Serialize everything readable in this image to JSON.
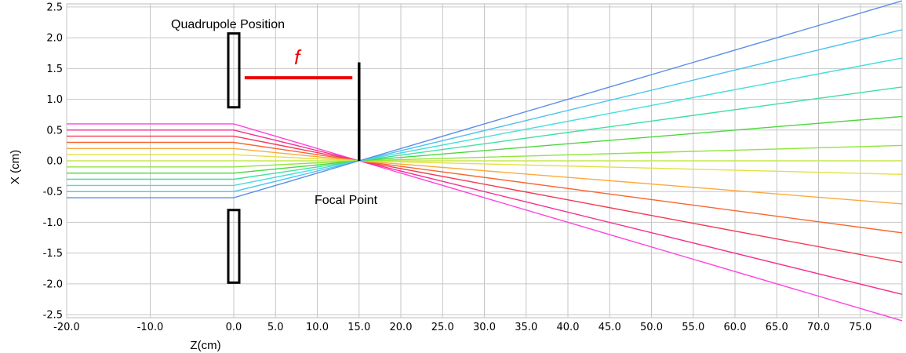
{
  "chart_data": {
    "type": "line",
    "xlabel": "Z(cm)",
    "ylabel": "X (cm)",
    "xlim": [
      -20,
      80
    ],
    "ylim": [
      -2.55,
      2.55
    ],
    "x_ticks": [
      "-20.0",
      "-10.0",
      "0.0",
      "5.0",
      "10.0",
      "15.0",
      "20.0",
      "25.0",
      "30.0",
      "35.0",
      "40.0",
      "45.0",
      "50.0",
      "55.0",
      "60.0",
      "65.0",
      "70.0",
      "75.0"
    ],
    "x_tick_values": [
      -20,
      -10,
      0,
      5,
      10,
      15,
      20,
      25,
      30,
      35,
      40,
      45,
      50,
      55,
      60,
      65,
      70,
      75
    ],
    "y_ticks": [
      "2.5",
      "2.0",
      "1.5",
      "1.0",
      "0.5",
      "0.0",
      "-0.5",
      "-1.0",
      "-1.5",
      "-2.0",
      "-2.5"
    ],
    "y_tick_values": [
      2.5,
      2.0,
      1.5,
      1.0,
      0.5,
      0.0,
      -0.5,
      -1.0,
      -1.5,
      -2.0,
      -2.5
    ],
    "grid": true,
    "quadrupole": {
      "z": 0.0,
      "upper": [
        0.87,
        2.07
      ],
      "lower": [
        -0.8,
        -1.98
      ]
    },
    "focal_point": {
      "z": 15.0,
      "x": 0.0
    },
    "focal_marker_top": 1.6,
    "focal_length_line": {
      "z_start": 1.3,
      "z_end": 14.2,
      "x": 1.35
    },
    "annotations": {
      "quadrupole_label": "Quadrupole Position",
      "focal_point_label": "Focal Point",
      "focal_length_symbol": "f"
    },
    "series": [
      {
        "x": [
          -20,
          0,
          15,
          80
        ],
        "values": [
          0.6,
          0.6,
          0.0,
          -2.6
        ],
        "color": "#ff44dd"
      },
      {
        "x": [
          -20,
          0,
          15,
          80
        ],
        "values": [
          0.5,
          0.5,
          0.0,
          -2.17
        ],
        "color": "#f5308f"
      },
      {
        "x": [
          -20,
          0,
          15,
          80
        ],
        "values": [
          0.4,
          0.4,
          0.0,
          -1.65
        ],
        "color": "#f23a55"
      },
      {
        "x": [
          -20,
          0,
          15,
          80
        ],
        "values": [
          0.3,
          0.3,
          0.0,
          -1.17
        ],
        "color": "#f86530"
      },
      {
        "x": [
          -20,
          0,
          15,
          80
        ],
        "values": [
          0.2,
          0.2,
          0.0,
          -0.7
        ],
        "color": "#fbaa3c"
      },
      {
        "x": [
          -20,
          0,
          15,
          80
        ],
        "values": [
          0.1,
          0.1,
          0.0,
          -0.22
        ],
        "color": "#e5e040"
      },
      {
        "x": [
          -20,
          0,
          15,
          80
        ],
        "values": [
          0.0,
          0.0,
          0.0,
          0.0
        ],
        "color": "#c6e84a"
      },
      {
        "x": [
          -20,
          0,
          15,
          80
        ],
        "values": [
          -0.1,
          -0.1,
          0.0,
          0.25
        ],
        "color": "#8ee53a"
      },
      {
        "x": [
          -20,
          0,
          15,
          80
        ],
        "values": [
          -0.2,
          -0.2,
          0.0,
          0.72
        ],
        "color": "#4cd63c"
      },
      {
        "x": [
          -20,
          0,
          15,
          80
        ],
        "values": [
          -0.3,
          -0.3,
          0.0,
          1.2
        ],
        "color": "#3fe0a0"
      },
      {
        "x": [
          -20,
          0,
          15,
          80
        ],
        "values": [
          -0.4,
          -0.4,
          0.0,
          1.67
        ],
        "color": "#44dddd"
      },
      {
        "x": [
          -20,
          0,
          15,
          80
        ],
        "values": [
          -0.5,
          -0.5,
          0.0,
          2.13
        ],
        "color": "#4ec3ef"
      },
      {
        "x": [
          -20,
          0,
          15,
          80
        ],
        "values": [
          -0.6,
          -0.6,
          0.0,
          2.6
        ],
        "color": "#5b8fe8"
      }
    ]
  }
}
